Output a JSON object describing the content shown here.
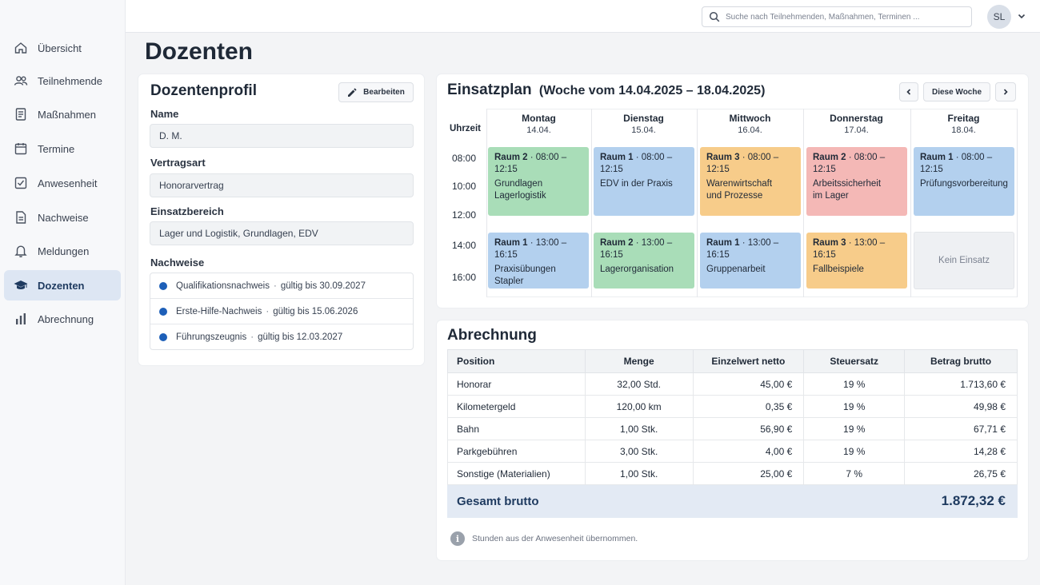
{
  "sidebar": {
    "items": [
      {
        "label": "Übersicht",
        "icon": "home-icon"
      },
      {
        "label": "Teilnehmende",
        "icon": "users-icon"
      },
      {
        "label": "Maßnahmen",
        "icon": "document-icon"
      },
      {
        "label": "Termine",
        "icon": "calendar-icon"
      },
      {
        "label": "Anwesenheit",
        "icon": "checkbox-icon"
      },
      {
        "label": "Nachweise",
        "icon": "file-icon"
      },
      {
        "label": "Meldungen",
        "icon": "bell-icon"
      },
      {
        "label": "Dozenten",
        "icon": "graduation-cap-icon",
        "active": true
      },
      {
        "label": "Abrechnung",
        "icon": "bar-chart-icon"
      }
    ]
  },
  "header": {
    "search_placeholder": "Suche nach Teilnehmenden, Maßnahmen, Terminen ...",
    "avatar_initials": "SL"
  },
  "page": {
    "title": "Dozenten"
  },
  "profile": {
    "title": "Dozentenprofil",
    "edit_label": "Bearbeiten",
    "name_label": "Name",
    "name_value": "D. M.",
    "contract_label": "Vertragsart",
    "contract_value": "Honorarvertrag",
    "area_label": "Einsatzbereich",
    "area_value": "Lager und Logistik, Grundlagen, EDV",
    "certs_label": "Nachweise",
    "certs": [
      {
        "name": "Qualifikationsnachweis",
        "valid": "gültig bis 30.09.2027"
      },
      {
        "name": "Erste-Hilfe-Nachweis",
        "valid": "gültig bis 15.06.2026"
      },
      {
        "name": "Führungszeugnis",
        "valid": "gültig bis 12.03.2027"
      }
    ]
  },
  "schedule": {
    "title": "Einsatzplan",
    "week_range": "(Woche vom 14.04.2025 – 18.04.2025)",
    "this_week_label": "Diese Woche",
    "time_header": "Uhrzeit",
    "times": [
      "08:00",
      "10:00",
      "12:00",
      "14:00",
      "16:00"
    ],
    "days": [
      {
        "name": "Montag",
        "date": "14.04."
      },
      {
        "name": "Dienstag",
        "date": "15.04."
      },
      {
        "name": "Mittwoch",
        "date": "16.04."
      },
      {
        "name": "Donnerstag",
        "date": "17.04."
      },
      {
        "name": "Freitag",
        "date": "18.04."
      }
    ],
    "morning": [
      {
        "room": "Raum 2",
        "time": " · 08:00 – 12:15",
        "desc": "Grundlagen\nLagerlogistik",
        "color": "#a9ddb8"
      },
      {
        "room": "Raum 1",
        "time": " · 08:00 – 12:15",
        "desc": "EDV in der Praxis",
        "color": "#b3d0ee"
      },
      {
        "room": "Raum 3",
        "time": " · 08:00 – 12:15",
        "desc": "Warenwirtschaft\nund Prozesse",
        "color": "#f7cc8a"
      },
      {
        "room": "Raum 2",
        "time": " · 08:00 – 12:15",
        "desc": "Arbeitssicherheit\nim Lager",
        "color": "#f4b8b6"
      },
      {
        "room": "Raum 1",
        "time": " · 08:00 – 12:15",
        "desc": "Prüfungsvorbereitung",
        "color": "#b3d0ee"
      }
    ],
    "afternoon": [
      {
        "room": "Raum 1",
        "time": " · 13:00 – 16:15",
        "desc": "Praxisübungen\nStapler",
        "color": "#b3d0ee"
      },
      {
        "room": "Raum 2",
        "time": " · 13:00 – 16:15",
        "desc": "Lagerorganisation",
        "color": "#a9ddb8"
      },
      {
        "room": "Raum 1",
        "time": " · 13:00 – 16:15",
        "desc": "Gruppenarbeit",
        "color": "#b3d0ee"
      },
      {
        "room": "Raum 3",
        "time": " · 13:00 – 16:15",
        "desc": "Fallbeispiele",
        "color": "#f7cc8a"
      }
    ],
    "no_assignment": "Kein Einsatz"
  },
  "billing": {
    "title": "Abrechnung",
    "headers": [
      "Position",
      "Menge",
      "Einzelwert netto",
      "Steuersatz",
      "Betrag brutto"
    ],
    "rows": [
      [
        "Honorar",
        "32,00 Std.",
        "45,00 €",
        "19 %",
        "1.713,60 €"
      ],
      [
        "Kilometergeld",
        "120,00 km",
        "0,35 €",
        "19 %",
        "49,98 €"
      ],
      [
        "Bahn",
        "1,00 Stk.",
        "56,90 €",
        "19 %",
        "67,71 €"
      ],
      [
        "Parkgebühren",
        "3,00 Stk.",
        "4,00 €",
        "19 %",
        "14,28 €"
      ],
      [
        "Sonstige (Materialien)",
        "1,00 Stk.",
        "25,00 €",
        "7 %",
        "26,75 €"
      ]
    ],
    "total_label": "Gesamt brutto",
    "total_value": "1.872,32 €",
    "note": "Stunden aus der Anwesenheit übernommen.",
    "note_icon": "info-icon"
  },
  "colors": {
    "accent": "#1e3a5f",
    "dot": "#1d5fb8",
    "active_nav": "#dde6f3"
  }
}
